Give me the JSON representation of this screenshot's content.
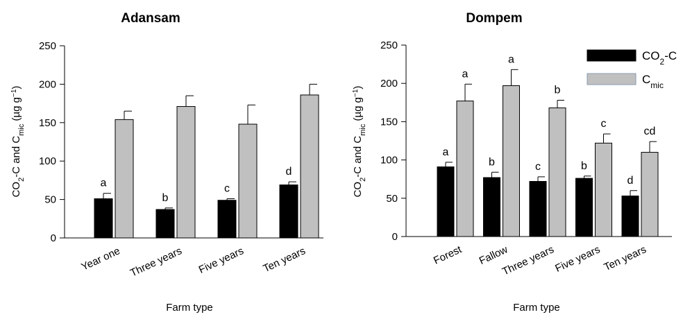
{
  "chart_data": [
    {
      "type": "bar",
      "title": "Adansam",
      "xlabel": "Farm type",
      "ylabel": {
        "pre": "CO",
        "sub1": "2",
        "mid": "-C and C",
        "sub2": "mic",
        "post": " (µg g",
        "sup": "−1",
        "end": ")"
      },
      "ylim": [
        0,
        250
      ],
      "yticks": [
        0,
        50,
        100,
        150,
        200,
        250
      ],
      "categories": [
        "Year one",
        "Three years",
        "Five years",
        "Ten years"
      ],
      "series": [
        {
          "key": "co2c",
          "color": "#000000",
          "values": [
            51,
            37,
            49,
            69
          ],
          "errors": [
            7,
            2,
            2,
            4
          ],
          "letters": [
            "a",
            "b",
            "c",
            "d"
          ]
        },
        {
          "key": "cmic",
          "color": "#c0c0c0",
          "values": [
            154,
            171,
            148,
            186
          ],
          "errors": [
            11,
            14,
            25,
            14
          ],
          "letters": [
            "",
            "",
            "",
            ""
          ]
        }
      ]
    },
    {
      "type": "bar",
      "title": "Dompem",
      "xlabel": "Farm type",
      "ylabel": {
        "pre": "CO",
        "sub1": "2",
        "mid": "-C and C",
        "sub2": "mic",
        "post": " (µg g",
        "sup": "−1",
        "end": ")"
      },
      "ylim": [
        0,
        250
      ],
      "yticks": [
        0,
        50,
        100,
        150,
        200,
        250
      ],
      "categories": [
        "Forest",
        "Fallow",
        "Three years",
        "Five years",
        "Ten years"
      ],
      "legend_position": "top-right",
      "series": [
        {
          "key": "co2c",
          "name": {
            "main": "CO",
            "sub": "2",
            "tail": "-C"
          },
          "color": "#000000",
          "values": [
            91,
            77,
            72,
            76,
            53
          ],
          "errors": [
            6,
            7,
            6,
            3,
            7
          ],
          "letters": [
            "a",
            "b",
            "c",
            "b",
            "d"
          ]
        },
        {
          "key": "cmic",
          "name": {
            "main": "C",
            "sub": "mic",
            "tail": ""
          },
          "color": "#c0c0c0",
          "values": [
            177,
            197,
            168,
            122,
            110
          ],
          "errors": [
            22,
            21,
            10,
            12,
            14
          ],
          "letters": [
            "a",
            "a",
            "b",
            "c",
            "cd"
          ]
        }
      ]
    }
  ]
}
